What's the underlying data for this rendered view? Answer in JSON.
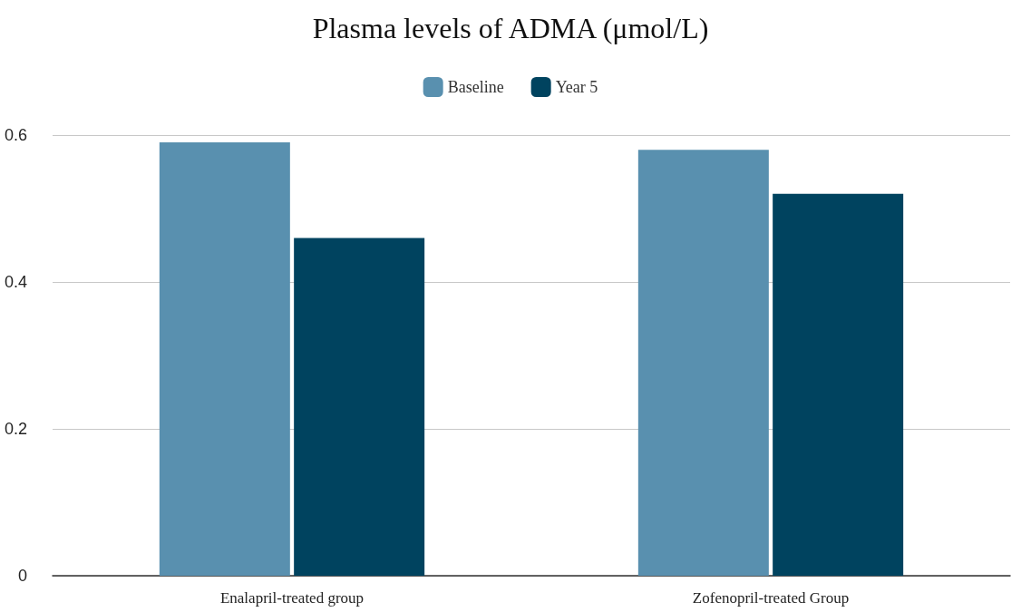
{
  "chart_data": {
    "type": "bar",
    "title": "Plasma levels of ADMA (μmol/L)",
    "categories": [
      "Enalapril-treated group",
      "Zofenopril-treated Group"
    ],
    "series": [
      {
        "name": "Baseline",
        "color": "#5990af",
        "values": [
          0.59,
          0.58
        ]
      },
      {
        "name": "Year 5",
        "color": "#00435f",
        "values": [
          0.46,
          0.52
        ]
      }
    ],
    "ylim": [
      0,
      0.6
    ],
    "yticks": [
      0,
      0.2,
      0.4,
      0.6
    ],
    "grid": "y",
    "legend": "top"
  }
}
